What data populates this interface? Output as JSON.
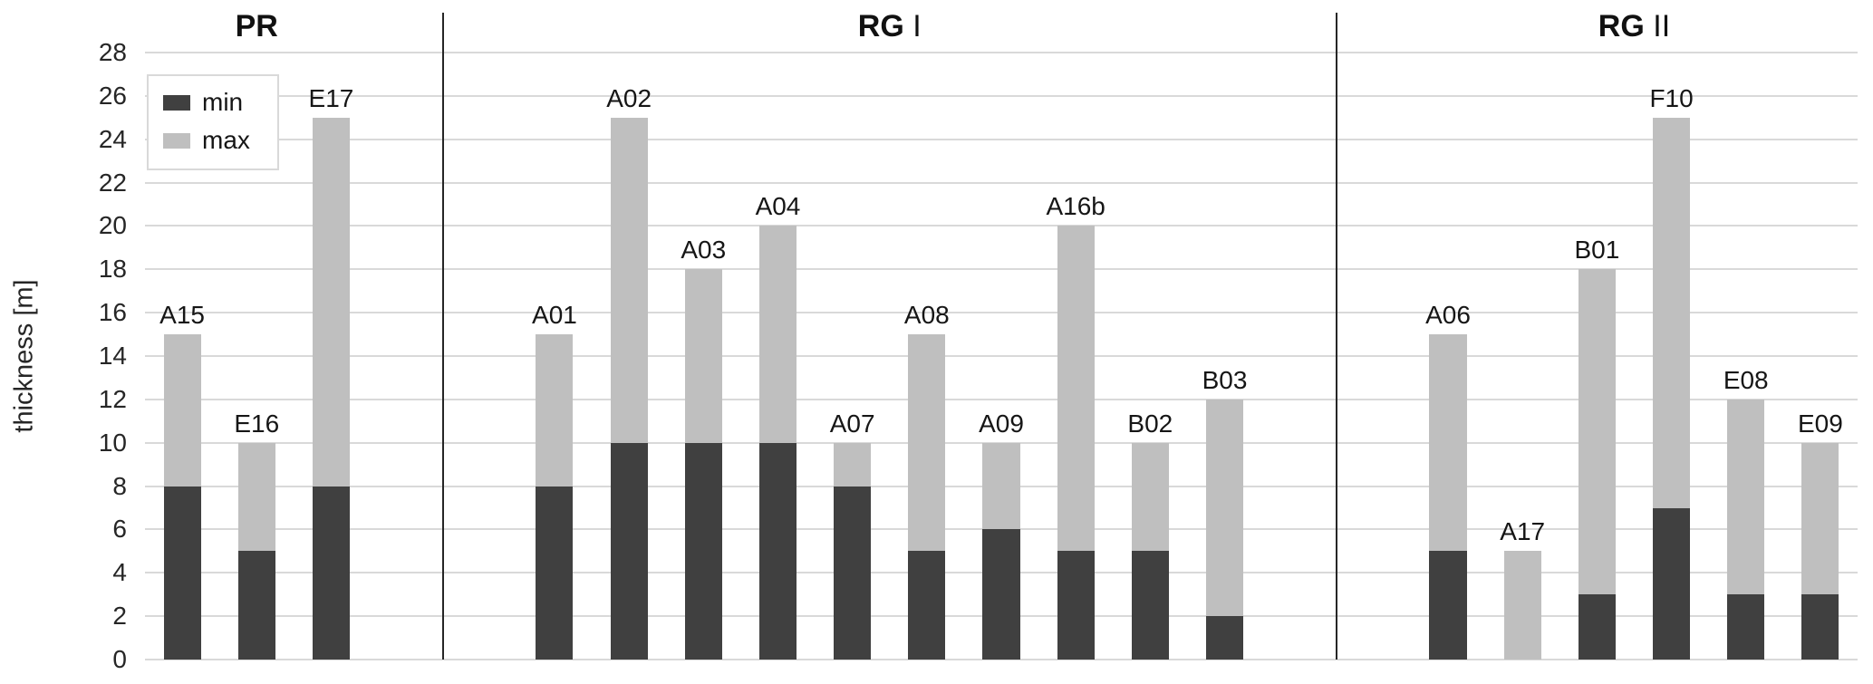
{
  "chart_data": {
    "type": "bar",
    "stacked": true,
    "title": "",
    "xlabel": "",
    "ylabel": "thickness [m]",
    "ylim": [
      0,
      28
    ],
    "ytick_step": 2,
    "yticks": [
      0,
      2,
      4,
      6,
      8,
      10,
      12,
      14,
      16,
      18,
      20,
      22,
      24,
      26,
      28
    ],
    "grid": true,
    "group_gap_slots": 2,
    "legend": {
      "position": "top-left",
      "entries": [
        {
          "label": "min",
          "color": "#404040"
        },
        {
          "label": "max",
          "color": "#bfbfbf"
        }
      ]
    },
    "colors": {
      "min_segment": "#404040",
      "max_segment": "#bfbfbf",
      "gridline": "#d9d9d9",
      "group_divider": "#262626"
    },
    "groups": [
      {
        "label": "PR",
        "label_bold": "PR",
        "label_rest": "",
        "bars": [
          {
            "label": "A15",
            "min": 8,
            "max": 15
          },
          {
            "label": "E16",
            "min": 5,
            "max": 10
          },
          {
            "label": "E17",
            "min": 8,
            "max": 25
          }
        ]
      },
      {
        "label": "RG I",
        "label_bold": "RG",
        "label_rest": "I",
        "bars": [
          {
            "label": "A01",
            "min": 8,
            "max": 15
          },
          {
            "label": "A02",
            "min": 10,
            "max": 25
          },
          {
            "label": "A03",
            "min": 10,
            "max": 18
          },
          {
            "label": "A04",
            "min": 10,
            "max": 20
          },
          {
            "label": "A07",
            "min": 8,
            "max": 10
          },
          {
            "label": "A08",
            "min": 5,
            "max": 15
          },
          {
            "label": "A09",
            "min": 6,
            "max": 10
          },
          {
            "label": "A16b",
            "min": 5,
            "max": 20
          },
          {
            "label": "B02",
            "min": 5,
            "max": 10
          },
          {
            "label": "B03",
            "min": 2,
            "max": 12
          }
        ]
      },
      {
        "label": "RG II",
        "label_bold": "RG",
        "label_rest": "II",
        "bars": [
          {
            "label": "A06",
            "min": 5,
            "max": 15
          },
          {
            "label": "A17",
            "min": 0,
            "max": 5
          },
          {
            "label": "B01",
            "min": 3,
            "max": 18
          },
          {
            "label": "F10",
            "min": 7,
            "max": 25
          },
          {
            "label": "E08",
            "min": 3,
            "max": 12
          },
          {
            "label": "E09",
            "min": 3,
            "max": 10
          }
        ]
      }
    ]
  }
}
